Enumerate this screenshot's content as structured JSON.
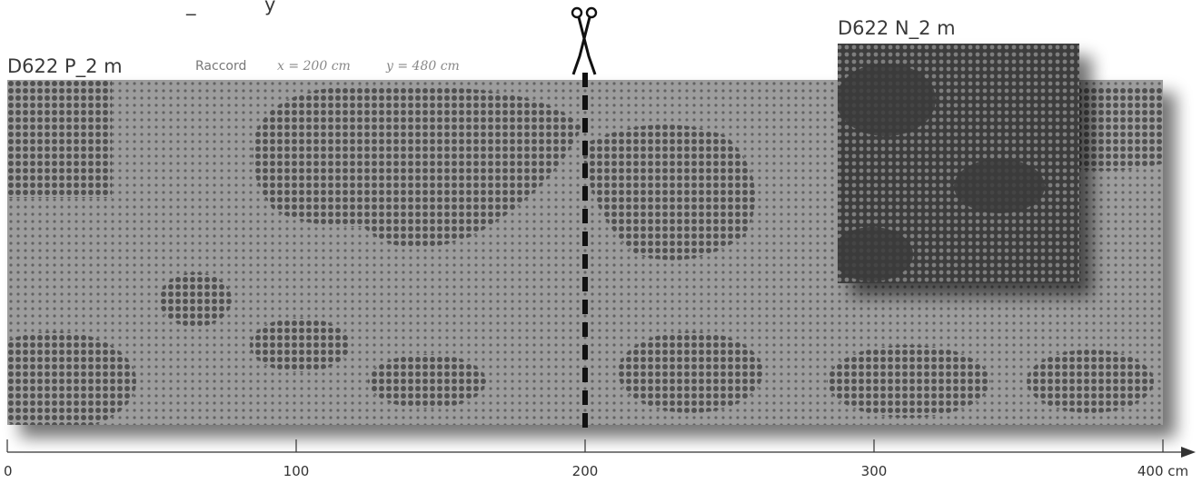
{
  "header_fragment": "_",
  "header_fragment_2": "y",
  "panel_main": {
    "label": "D622 P_2 m",
    "raccord_label": "Raccord",
    "raccord_x": "x = 200 cm",
    "raccord_y": "y = 480 cm"
  },
  "panel_sample": {
    "label": "D622 N_2 m"
  },
  "cut": {
    "position_cm": 200,
    "icon": "scissors-icon"
  },
  "axis": {
    "min": 0,
    "max": 400,
    "unit": "cm",
    "ticks": [
      {
        "value": 0,
        "label": "0"
      },
      {
        "value": 100,
        "label": "100"
      },
      {
        "value": 200,
        "label": "200"
      },
      {
        "value": 300,
        "label": "300"
      },
      {
        "value": 400,
        "label": "400 cm"
      }
    ]
  },
  "colors": {
    "panel_bg": "#9e9e9e",
    "dot_dark": "#4a4a4a",
    "sample_bg": "#3e3e3e",
    "sample_dot": "#8a8a8a",
    "cut_line": "#111111"
  }
}
